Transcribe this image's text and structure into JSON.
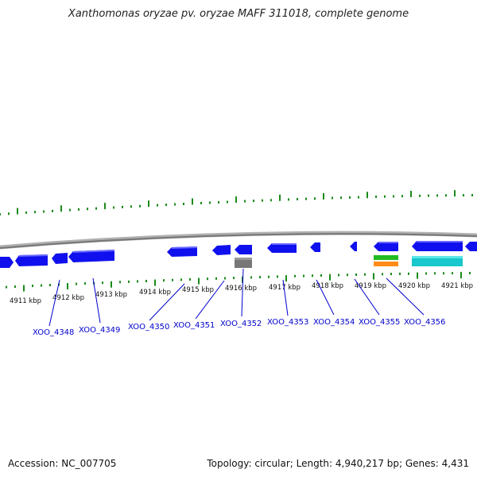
{
  "title": "Xanthomonas oryzae pv. oryzae MAFF 311018, complete genome",
  "footer": {
    "accession": "Accession: NC_007705",
    "summary": "Topology: circular; Length: 4,940,217 bp; Genes: 4,431"
  },
  "colors": {
    "gene": "#1010ee",
    "gene_top": "#5a5aff",
    "backbone": "#8a8a8a",
    "tick": "#1a8a1a",
    "label": "#0000cc",
    "gray_feature": "#777777",
    "green_feature": "#22bb22",
    "orange_feature": "#ff8c1a",
    "cyan_feature": "#18c8cc"
  },
  "scale_labels": [
    {
      "kbp": 4911,
      "text": "4911 kbp"
    },
    {
      "kbp": 4912,
      "text": "4912 kbp"
    },
    {
      "kbp": 4913,
      "text": "4913 kbp"
    },
    {
      "kbp": 4914,
      "text": "4914 kbp"
    },
    {
      "kbp": 4915,
      "text": "4915 kbp"
    },
    {
      "kbp": 4916,
      "text": "4916 kbp"
    },
    {
      "kbp": 4917,
      "text": "4917 kbp"
    },
    {
      "kbp": 4918,
      "text": "4918 kbp"
    },
    {
      "kbp": 4919,
      "text": "4919 kbp"
    },
    {
      "kbp": 4920,
      "text": "4920 kbp"
    },
    {
      "kbp": 4921,
      "text": "4921 kbp"
    }
  ],
  "gene_labels": [
    {
      "name": "XOO_4348"
    },
    {
      "name": "XOO_4349"
    },
    {
      "name": "XOO_4350"
    },
    {
      "name": "XOO_4351"
    },
    {
      "name": "XOO_4352"
    },
    {
      "name": "XOO_4353"
    },
    {
      "name": "XOO_4354"
    },
    {
      "name": "XOO_4355"
    },
    {
      "name": "XOO_4356"
    }
  ]
}
